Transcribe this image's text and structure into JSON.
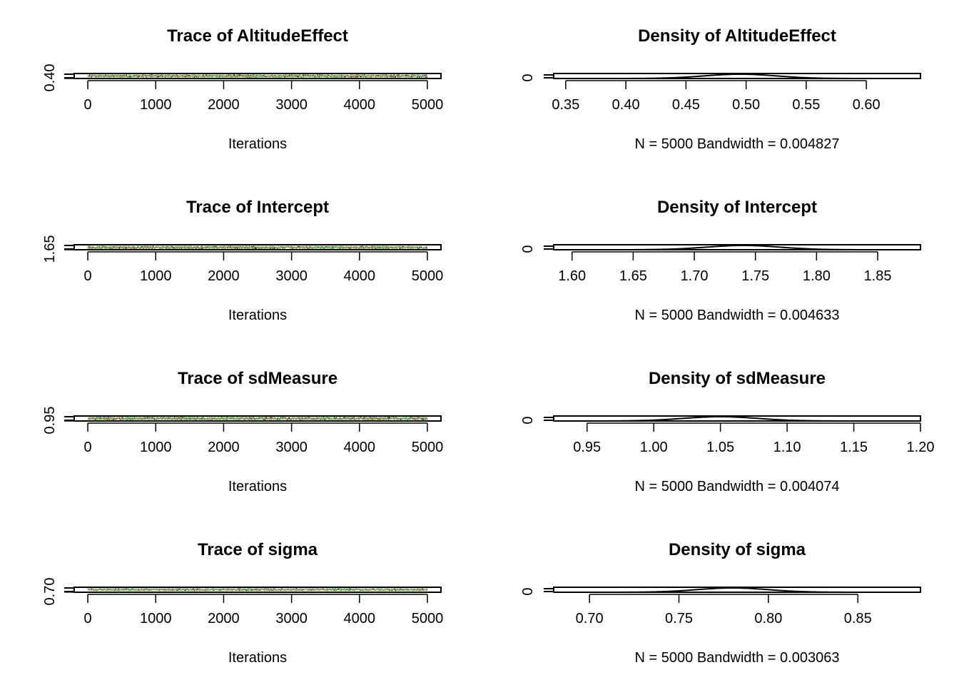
{
  "chart_data": [
    {
      "type": "line",
      "panel": "trace",
      "title": "Trace of AltitudeEffect",
      "xlabel": "Iterations",
      "xlim": [
        -200,
        5200
      ],
      "xticks": [
        0,
        1000,
        2000,
        3000,
        4000,
        5000
      ],
      "ylim": [
        0.39,
        0.61
      ],
      "yticks": [
        0.4
      ],
      "ytick_labels": [
        "0.40"
      ],
      "series": [
        {
          "color": "#000000",
          "center": 0.5,
          "spread": 0.05
        },
        {
          "color": "#DF536B",
          "center": 0.5,
          "spread": 0.05
        },
        {
          "color": "#61D04F",
          "center": 0.5,
          "spread": 0.05
        }
      ]
    },
    {
      "type": "line",
      "panel": "density",
      "title": "Density of AltitudeEffect",
      "xlabel": "N = 5000   Bandwidth = 0.004827",
      "xlim": [
        0.34,
        0.645
      ],
      "xticks": [
        0.35,
        0.4,
        0.45,
        0.5,
        0.55,
        0.6
      ],
      "xtick_labels": [
        "0.35",
        "0.40",
        "0.45",
        "0.50",
        "0.55",
        "0.60"
      ],
      "yticks": [
        0
      ],
      "ytick_labels": [
        "0"
      ],
      "density": {
        "mean": 0.495,
        "sd": 0.03
      }
    },
    {
      "type": "line",
      "panel": "trace",
      "title": "Trace of Intercept",
      "xlabel": "Iterations",
      "xlim": [
        -200,
        5200
      ],
      "xticks": [
        0,
        1000,
        2000,
        3000,
        4000,
        5000
      ],
      "ylim": [
        1.64,
        1.86
      ],
      "yticks": [
        1.65
      ],
      "ytick_labels": [
        "1.65"
      ],
      "series": [
        {
          "color": "#000000",
          "center": 1.74,
          "spread": 0.05
        },
        {
          "color": "#DF536B",
          "center": 1.74,
          "spread": 0.05
        },
        {
          "color": "#61D04F",
          "center": 1.74,
          "spread": 0.05
        }
      ]
    },
    {
      "type": "line",
      "panel": "density",
      "title": "Density of Intercept",
      "xlabel": "N = 5000   Bandwidth = 0.004633",
      "xlim": [
        1.585,
        1.885
      ],
      "xticks": [
        1.6,
        1.65,
        1.7,
        1.75,
        1.8,
        1.85
      ],
      "xtick_labels": [
        "1.60",
        "1.65",
        "1.70",
        "1.75",
        "1.80",
        "1.85"
      ],
      "yticks": [
        0
      ],
      "ytick_labels": [
        "0"
      ],
      "density": {
        "mean": 1.74,
        "sd": 0.03
      }
    },
    {
      "type": "line",
      "panel": "trace",
      "title": "Trace of sdMeasure",
      "xlabel": "Iterations",
      "xlim": [
        -200,
        5200
      ],
      "xticks": [
        0,
        1000,
        2000,
        3000,
        4000,
        5000
      ],
      "ylim": [
        0.94,
        1.16
      ],
      "yticks": [
        0.95
      ],
      "ytick_labels": [
        "0.95"
      ],
      "series": [
        {
          "color": "#000000",
          "center": 1.05,
          "spread": 0.05
        },
        {
          "color": "#DF536B",
          "center": 1.05,
          "spread": 0.05
        },
        {
          "color": "#61D04F",
          "center": 1.05,
          "spread": 0.05
        }
      ]
    },
    {
      "type": "line",
      "panel": "density",
      "title": "Density of sdMeasure",
      "xlabel": "N = 5000   Bandwidth = 0.004074",
      "xlim": [
        0.925,
        1.2
      ],
      "xticks": [
        0.95,
        1.0,
        1.05,
        1.1,
        1.15,
        1.2
      ],
      "xtick_labels": [
        "0.95",
        "1.00",
        "1.05",
        "1.10",
        "1.15",
        "1.20"
      ],
      "yticks": [
        0
      ],
      "ytick_labels": [
        "0"
      ],
      "density": {
        "mean": 1.05,
        "sd": 0.028
      }
    },
    {
      "type": "line",
      "panel": "trace",
      "title": "Trace of sigma",
      "xlabel": "Iterations",
      "xlim": [
        -200,
        5200
      ],
      "xticks": [
        0,
        1000,
        2000,
        3000,
        4000,
        5000
      ],
      "ylim": [
        0.69,
        0.86
      ],
      "yticks": [
        0.7
      ],
      "ytick_labels": [
        "0.70"
      ],
      "series": [
        {
          "color": "#000000",
          "center": 0.78,
          "spread": 0.03
        },
        {
          "color": "#DF536B",
          "center": 0.78,
          "spread": 0.03
        },
        {
          "color": "#61D04F",
          "center": 0.78,
          "spread": 0.03
        }
      ]
    },
    {
      "type": "line",
      "panel": "density",
      "title": "Density of sigma",
      "xlabel": "N = 5000   Bandwidth = 0.003063",
      "xlim": [
        0.68,
        0.885
      ],
      "xticks": [
        0.7,
        0.75,
        0.8,
        0.85
      ],
      "xtick_labels": [
        "0.70",
        "0.75",
        "0.80",
        "0.85"
      ],
      "yticks": [
        0
      ],
      "ytick_labels": [
        "0"
      ],
      "density": {
        "mean": 0.78,
        "sd": 0.02
      }
    }
  ]
}
